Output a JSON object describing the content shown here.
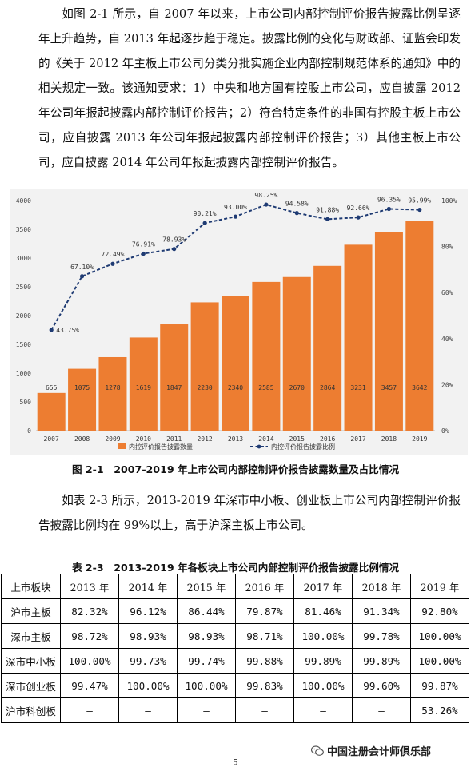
{
  "paragraph1": "如图 2-1 所示，自 2007 年以来，上市公司内部控制评价报告披露比例呈逐年上升趋势，自 2013 年起逐步趋于稳定。披露比例的变化与财政部、证监会印发的《关于 2012 年主板上市公司分类分批实施企业内部控制规范体系的通知》中的相关规定一致。该通知要求：1）中央和地方国有控股上市公司，应自披露 2012 年公司年报起披露内部控制评价报告；2）符合特定条件的非国有控股主板上市公司，应自披露 2013 年公司年报起披露内部控制评价报告；3）其他主板上市公司，应自披露 2014 年公司年报起披露内部控制评价报告。",
  "figure_caption": "图 2-1　2007-2019 年上市公司内部控制评价报告披露数量及占比情况",
  "paragraph2": "如表 2-3 所示，2013-2019 年深市中小板、创业板上市公司内部控制评价报告披露比例均在 99%以上，高于沪深主板上市公司。",
  "table_caption": "表 2-3　2013-2019 年各板块上市公司内部控制评价报告披露比例情况",
  "chart_data": {
    "type": "bar",
    "categories": [
      "2007",
      "2008",
      "2009",
      "2010",
      "2011",
      "2012",
      "2013",
      "2014",
      "2015",
      "2016",
      "2017",
      "2018",
      "2019"
    ],
    "series": [
      {
        "name": "内控评价报告披露数量",
        "type": "bar",
        "axis": "left",
        "color": "#ed7d31",
        "values": [
          655,
          1075,
          1278,
          1619,
          1847,
          2230,
          2340,
          2585,
          2670,
          2864,
          3231,
          3457,
          3642
        ]
      },
      {
        "name": "内控评价报告披露比例",
        "type": "line",
        "axis": "right",
        "color": "#1f3b73",
        "values": [
          43.75,
          67.1,
          72.49,
          76.91,
          78.93,
          90.21,
          93.0,
          98.25,
          94.58,
          91.88,
          92.66,
          96.35,
          95.99
        ]
      }
    ],
    "bar_value_labels": [
      "655",
      "1075",
      "1278",
      "1619",
      "1847",
      "2230",
      "2340",
      "2585",
      "2670",
      "2864",
      "3231",
      "3457",
      "3642"
    ],
    "line_value_labels": [
      "43.75%",
      "67.10%",
      "72.49%",
      "76.91%",
      "78.93%",
      "90.21%",
      "93.00%",
      "98.25%",
      "94.58%",
      "91.88%",
      "92.66%",
      "96.35%",
      "95.99%"
    ],
    "ylim_left": [
      0,
      4000
    ],
    "yticks_left": [
      "0",
      "500",
      "1000",
      "1500",
      "2000",
      "2500",
      "3000",
      "3500",
      "4000"
    ],
    "ylim_right": [
      0,
      100
    ],
    "yticks_right": [
      "0%",
      "20%",
      "40%",
      "60%",
      "80%",
      "100%"
    ],
    "legend_position": "bottom",
    "grid": false
  },
  "table": {
    "headers": [
      "上市板块",
      "2013 年",
      "2014 年",
      "2015 年",
      "2016 年",
      "2017 年",
      "2018 年",
      "2019 年"
    ],
    "rows": [
      [
        "沪市主板",
        "82.32%",
        "96.12%",
        "86.44%",
        "79.87%",
        "81.46%",
        "91.34%",
        "92.80%"
      ],
      [
        "深市主板",
        "98.72%",
        "98.93%",
        "98.93%",
        "98.71%",
        "100.00%",
        "99.78%",
        "100.00%"
      ],
      [
        "深市中小板",
        "100.00%",
        "99.73%",
        "99.74%",
        "99.88%",
        "99.89%",
        "99.89%",
        "100.00%"
      ],
      [
        "深市创业板",
        "99.47%",
        "100.00%",
        "100.00%",
        "99.83%",
        "100.00%",
        "99.60%",
        "99.87%"
      ],
      [
        "沪市科创板",
        "–",
        "–",
        "–",
        "–",
        "–",
        "–",
        "53.26%"
      ]
    ]
  },
  "footer": {
    "account": "中国注册会计师俱乐部",
    "icon": "wechat-icon"
  },
  "page_number": "5"
}
